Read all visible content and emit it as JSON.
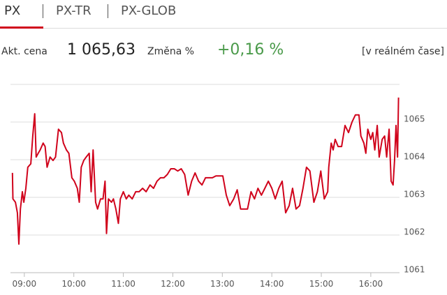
{
  "tabs": [
    "PX",
    "PX-TR",
    "PX-GLOB"
  ],
  "quote": {
    "price_label": "Akt. cena",
    "price": "1 065,63",
    "change_label": "Změna %",
    "change": "+0,16 %",
    "mode": "[v reálném čase]"
  },
  "chart_data": {
    "type": "line",
    "color": "#d0021b",
    "x": [
      8.76,
      8.77,
      8.82,
      8.86,
      8.89,
      8.92,
      8.96,
      8.99,
      9.03,
      9.07,
      9.13,
      9.17,
      9.21,
      9.24,
      9.28,
      9.32,
      9.38,
      9.42,
      9.46,
      9.52,
      9.58,
      9.63,
      9.69,
      9.75,
      9.79,
      9.85,
      9.9,
      9.96,
      10.01,
      10.07,
      10.11,
      10.15,
      10.2,
      10.25,
      10.31,
      10.35,
      10.39,
      10.44,
      10.48,
      10.54,
      10.59,
      10.63,
      10.66,
      10.7,
      10.76,
      10.8,
      10.85,
      10.9,
      10.94,
      11.0,
      11.06,
      11.11,
      11.18,
      11.25,
      11.32,
      11.39,
      11.46,
      11.54,
      11.61,
      11.68,
      11.75,
      11.82,
      11.89,
      11.96,
      12.03,
      12.1,
      12.17,
      12.24,
      12.31,
      12.38,
      12.45,
      12.52,
      12.59,
      12.66,
      12.73,
      12.8,
      12.87,
      12.94,
      13.01,
      13.08,
      13.15,
      13.23,
      13.3,
      13.37,
      13.44,
      13.51,
      13.58,
      13.65,
      13.72,
      13.79,
      13.86,
      13.93,
      14.0,
      14.07,
      14.14,
      14.21,
      14.28,
      14.35,
      14.42,
      14.49,
      14.56,
      14.63,
      14.7,
      14.77,
      14.85,
      14.92,
      14.99,
      15.06,
      15.13,
      15.15,
      15.2,
      15.24,
      15.28,
      15.34,
      15.41,
      15.48,
      15.55,
      15.62,
      15.69,
      15.76,
      15.8,
      15.86,
      15.9,
      15.94,
      16.0,
      16.04,
      16.08,
      16.13,
      16.17,
      16.23,
      16.28,
      16.32,
      16.37,
      16.41,
      16.45,
      16.48,
      16.51,
      16.54,
      16.56
    ],
    "values": [
      1063.65,
      1062.96,
      1062.87,
      1062.59,
      1061.76,
      1062.69,
      1063.15,
      1062.87,
      1063.24,
      1063.8,
      1063.89,
      1064.63,
      1065.22,
      1064.07,
      1064.17,
      1064.26,
      1064.44,
      1064.35,
      1063.8,
      1064.07,
      1063.98,
      1064.07,
      1064.81,
      1064.72,
      1064.44,
      1064.26,
      1064.17,
      1063.52,
      1063.43,
      1063.24,
      1062.87,
      1063.8,
      1063.98,
      1064.07,
      1064.17,
      1063.15,
      1064.26,
      1062.87,
      1062.69,
      1062.96,
      1062.96,
      1063.43,
      1062.04,
      1062.96,
      1062.87,
      1062.96,
      1062.69,
      1062.31,
      1062.96,
      1063.15,
      1062.96,
      1063.06,
      1062.96,
      1063.15,
      1063.15,
      1063.24,
      1063.15,
      1063.33,
      1063.24,
      1063.43,
      1063.52,
      1063.52,
      1063.61,
      1063.76,
      1063.76,
      1063.7,
      1063.76,
      1063.61,
      1063.06,
      1063.43,
      1063.65,
      1063.43,
      1063.33,
      1063.52,
      1063.52,
      1063.52,
      1063.57,
      1063.57,
      1063.57,
      1063.06,
      1062.78,
      1062.96,
      1063.2,
      1062.69,
      1062.69,
      1062.69,
      1063.15,
      1062.96,
      1063.24,
      1063.06,
      1063.24,
      1063.43,
      1063.24,
      1062.96,
      1063.24,
      1063.43,
      1062.59,
      1062.78,
      1063.24,
      1062.69,
      1062.78,
      1063.24,
      1063.8,
      1063.7,
      1062.87,
      1063.15,
      1063.7,
      1062.96,
      1063.15,
      1063.8,
      1064.44,
      1064.26,
      1064.54,
      1064.35,
      1064.35,
      1064.91,
      1064.72,
      1065.0,
      1065.19,
      1065.19,
      1064.63,
      1064.44,
      1064.17,
      1064.81,
      1064.54,
      1064.72,
      1064.26,
      1064.91,
      1064.07,
      1064.54,
      1064.63,
      1064.07,
      1064.81,
      1063.43,
      1063.33,
      1063.98,
      1064.91,
      1064.07,
      1065.65
    ],
    "xlim": [
      8.72,
      16.58
    ],
    "xticks": [
      {
        "value": 9,
        "label": "09:00"
      },
      {
        "value": 10,
        "label": "10:00"
      },
      {
        "value": 11,
        "label": "11:00"
      },
      {
        "value": 12,
        "label": "12:00"
      },
      {
        "value": 13,
        "label": "13:00"
      },
      {
        "value": 14,
        "label": "14:00"
      },
      {
        "value": 15,
        "label": "15:00"
      },
      {
        "value": 16,
        "label": "16:00"
      }
    ],
    "ylim": [
      1061,
      1066
    ],
    "yticks": [
      1061,
      1062,
      1063,
      1064,
      1065
    ],
    "grid": true
  }
}
